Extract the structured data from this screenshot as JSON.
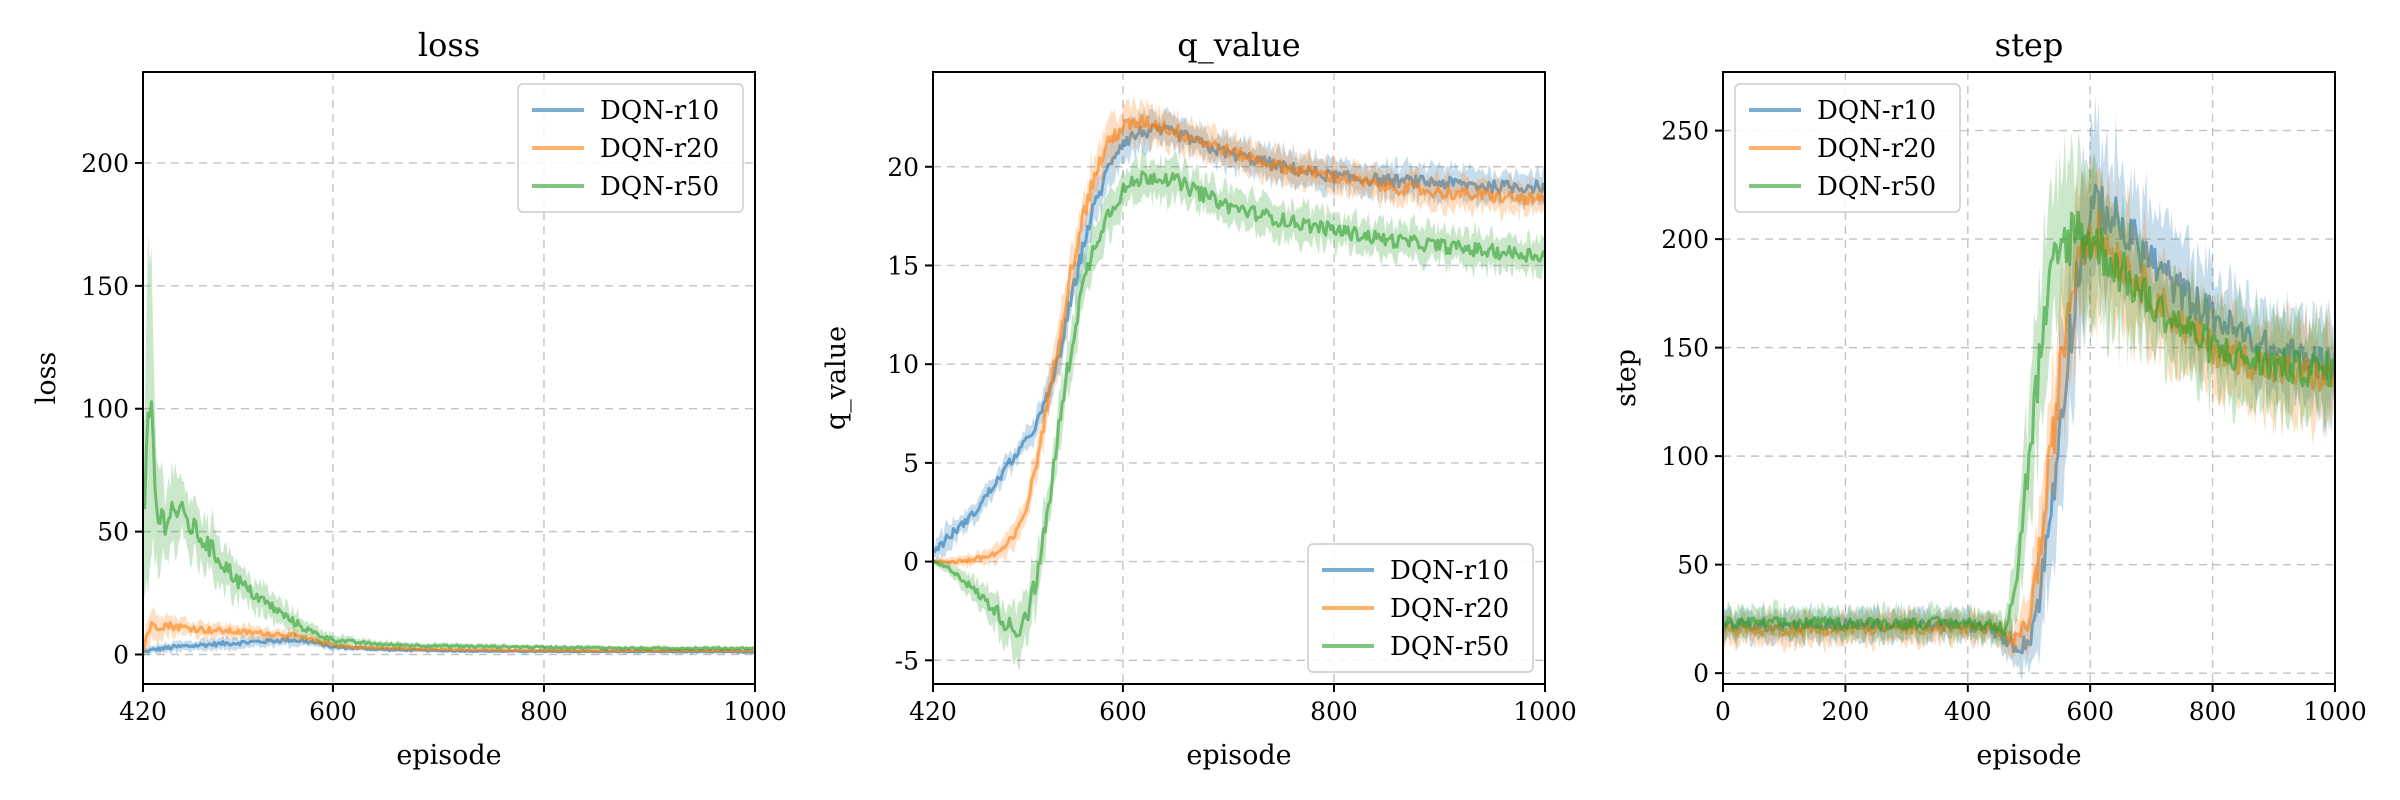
{
  "chart_data": [
    {
      "type": "line",
      "title": "loss",
      "xlabel": "episode",
      "ylabel": "loss",
      "xlim": [
        420,
        1000
      ],
      "ylim": [
        -12,
        237
      ],
      "xticks": [
        420,
        600,
        800,
        1000
      ],
      "yticks": [
        0,
        50,
        100,
        150,
        200
      ],
      "ytick_labels": [
        "0",
        "50",
        "100",
        "150",
        "200"
      ],
      "grid": true,
      "legend_position": "top-right",
      "series": [
        {
          "name": "DQN-r10",
          "color": "#1f77b4",
          "x": [
            420,
            430,
            450,
            480,
            520,
            560,
            580,
            600,
            650,
            700,
            800,
            900,
            1000
          ],
          "values": [
            1,
            2,
            3,
            4,
            5,
            6,
            5,
            3,
            2,
            1.5,
            1.2,
            1.1,
            1
          ],
          "band": [
            1,
            1.5,
            2,
            2,
            2,
            2,
            1.5,
            1,
            0.8,
            0.5,
            0.4,
            0.4,
            0.4
          ]
        },
        {
          "name": "DQN-r20",
          "color": "#ff7f0e",
          "x": [
            420,
            425,
            430,
            440,
            460,
            480,
            500,
            520,
            540,
            560,
            580,
            600,
            620,
            650,
            700,
            800,
            900,
            1000
          ],
          "values": [
            2,
            10,
            12,
            12,
            11,
            10,
            9.5,
            9,
            8.5,
            8,
            6,
            4,
            3,
            2.5,
            2,
            1.6,
            1.5,
            1.5
          ],
          "band": [
            3,
            6,
            5,
            4,
            3,
            3,
            2.5,
            2.5,
            2,
            2,
            1.5,
            1,
            0.8,
            0.6,
            0.5,
            0.4,
            0.4,
            0.4
          ]
        },
        {
          "name": "DQN-r50",
          "color": "#2ca02c",
          "x": [
            420,
            422,
            425,
            428,
            432,
            436,
            440,
            445,
            450,
            460,
            470,
            480,
            490,
            500,
            510,
            520,
            540,
            560,
            580,
            600,
            620,
            650,
            700,
            800,
            900,
            1000
          ],
          "values": [
            60,
            50,
            90,
            100,
            60,
            55,
            55,
            58,
            60,
            55,
            50,
            45,
            40,
            35,
            30,
            26,
            20,
            14,
            9,
            6,
            5,
            4,
            3.5,
            3,
            2.5,
            2.5
          ],
          "band": [
            30,
            25,
            60,
            60,
            20,
            15,
            15,
            14,
            14,
            12,
            10,
            10,
            9,
            8,
            7,
            6,
            5,
            4,
            3,
            2,
            1.5,
            1.2,
            1,
            0.8,
            0.8,
            0.8
          ]
        }
      ]
    },
    {
      "type": "line",
      "title": "q_value",
      "xlabel": "episode",
      "ylabel": "q_value",
      "xlim": [
        420,
        1000
      ],
      "ylim": [
        -6.2,
        24.8
      ],
      "xticks": [
        420,
        600,
        800,
        1000
      ],
      "yticks": [
        -5,
        0,
        5,
        10,
        15,
        20
      ],
      "ytick_labels": [
        "-5",
        "0",
        "5",
        "10",
        "15",
        "20"
      ],
      "grid": true,
      "legend_position": "lower-right",
      "series": [
        {
          "name": "DQN-r10",
          "color": "#1f77b4",
          "x": [
            420,
            430,
            440,
            450,
            460,
            470,
            480,
            490,
            500,
            510,
            520,
            530,
            540,
            550,
            560,
            570,
            580,
            590,
            600,
            620,
            640,
            660,
            680,
            700,
            750,
            800,
            850,
            900,
            950,
            1000
          ],
          "values": [
            0.5,
            1,
            1.5,
            2,
            2.5,
            3.3,
            4,
            4.8,
            5.5,
            6.2,
            7.2,
            8.5,
            10.5,
            13,
            15.5,
            17.5,
            19,
            20.5,
            21.3,
            21.8,
            21.8,
            21.5,
            21,
            20.7,
            20,
            19.5,
            19.3,
            19.2,
            19,
            19
          ],
          "band": [
            0.3,
            0.6,
            0.5,
            0.4,
            0.4,
            0.5,
            0.5,
            0.5,
            0.5,
            0.5,
            0.6,
            0.7,
            0.8,
            0.9,
            0.9,
            0.9,
            0.9,
            0.9,
            0.8,
            0.8,
            0.7,
            0.7,
            0.7,
            0.7,
            0.7,
            0.7,
            0.7,
            0.7,
            0.7,
            0.7
          ]
        },
        {
          "name": "DQN-r20",
          "color": "#ff7f0e",
          "x": [
            420,
            440,
            460,
            480,
            490,
            500,
            510,
            520,
            530,
            540,
            550,
            560,
            570,
            580,
            590,
            600,
            620,
            640,
            660,
            680,
            700,
            750,
            800,
            850,
            900,
            950,
            1000
          ],
          "values": [
            0,
            0,
            0.1,
            0.4,
            0.8,
            1.5,
            3,
            5.5,
            8.5,
            11.5,
            14.5,
            17,
            19,
            20.5,
            21.5,
            22,
            22.3,
            22,
            21.6,
            21.2,
            20.8,
            20,
            19.5,
            19,
            18.7,
            18.5,
            18.3
          ],
          "band": [
            0.1,
            0.2,
            0.3,
            0.4,
            0.5,
            0.6,
            0.7,
            0.8,
            0.9,
            1,
            1,
            1,
            1,
            1,
            1,
            0.9,
            0.8,
            0.8,
            0.8,
            0.7,
            0.7,
            0.7,
            0.7,
            0.7,
            0.7,
            0.7,
            0.7
          ]
        },
        {
          "name": "DQN-r50",
          "color": "#2ca02c",
          "x": [
            420,
            440,
            460,
            480,
            490,
            500,
            510,
            520,
            530,
            540,
            550,
            560,
            570,
            580,
            590,
            600,
            620,
            640,
            660,
            680,
            700,
            750,
            800,
            850,
            900,
            950,
            1000
          ],
          "values": [
            0,
            -0.5,
            -1.5,
            -2.5,
            -3.2,
            -3.5,
            -2.5,
            -0.5,
            3,
            7,
            10.5,
            13.5,
            15.5,
            17,
            18,
            18.8,
            19.5,
            19.5,
            19,
            18.5,
            18,
            17.3,
            16.8,
            16.3,
            16,
            15.7,
            15.5
          ],
          "band": [
            0.1,
            0.3,
            0.5,
            0.8,
            1,
            1.2,
            1.2,
            1.2,
            1.2,
            1.2,
            1.2,
            1.1,
            1,
            1,
            1,
            0.9,
            0.9,
            0.9,
            0.9,
            0.8,
            0.8,
            0.8,
            0.8,
            0.8,
            0.8,
            0.8,
            0.8
          ]
        }
      ]
    },
    {
      "type": "line",
      "title": "step",
      "xlabel": "episode",
      "ylabel": "step",
      "xlim": [
        0,
        1000
      ],
      "ylim": [
        -5,
        277
      ],
      "xticks": [
        0,
        200,
        400,
        600,
        800,
        1000
      ],
      "yticks": [
        0,
        50,
        100,
        150,
        200,
        250
      ],
      "ytick_labels": [
        "0",
        "50",
        "100",
        "150",
        "200",
        "250"
      ],
      "grid": true,
      "legend_position": "top-left",
      "series": [
        {
          "name": "DQN-r10",
          "color": "#1f77b4",
          "x": [
            0,
            100,
            200,
            300,
            400,
            440,
            460,
            480,
            500,
            520,
            540,
            560,
            580,
            600,
            620,
            650,
            700,
            750,
            800,
            850,
            900,
            950,
            1000
          ],
          "values": [
            22,
            22,
            22,
            22,
            22,
            20,
            16,
            12,
            14,
            40,
            85,
            140,
            185,
            210,
            215,
            205,
            190,
            175,
            165,
            155,
            148,
            145,
            142
          ],
          "band": [
            6,
            6,
            6,
            6,
            6,
            6,
            6,
            8,
            10,
            20,
            28,
            30,
            30,
            30,
            28,
            26,
            22,
            20,
            18,
            18,
            18,
            18,
            18
          ]
        },
        {
          "name": "DQN-r20",
          "color": "#ff7f0e",
          "x": [
            0,
            100,
            200,
            300,
            400,
            440,
            460,
            480,
            500,
            520,
            540,
            560,
            580,
            600,
            620,
            650,
            700,
            750,
            800,
            850,
            900,
            950,
            1000
          ],
          "values": [
            20,
            20,
            20,
            21,
            21,
            20,
            17,
            15,
            25,
            60,
            110,
            160,
            195,
            205,
            200,
            190,
            175,
            160,
            150,
            145,
            140,
            138,
            136
          ],
          "band": [
            6,
            6,
            6,
            6,
            6,
            6,
            6,
            8,
            12,
            22,
            28,
            30,
            30,
            28,
            26,
            24,
            20,
            18,
            18,
            18,
            18,
            18,
            18
          ]
        },
        {
          "name": "DQN-r50",
          "color": "#2ca02c",
          "x": [
            0,
            100,
            200,
            300,
            400,
            440,
            460,
            480,
            500,
            520,
            540,
            560,
            580,
            600,
            620,
            650,
            700,
            750,
            800,
            850,
            900,
            950,
            1000
          ],
          "values": [
            23,
            23,
            23,
            23,
            23,
            22,
            20,
            45,
            100,
            150,
            185,
            200,
            205,
            200,
            195,
            185,
            170,
            160,
            150,
            145,
            142,
            140,
            140
          ],
          "band": [
            6,
            6,
            6,
            6,
            6,
            6,
            6,
            15,
            25,
            30,
            32,
            32,
            30,
            28,
            26,
            24,
            20,
            18,
            18,
            18,
            18,
            18,
            18
          ]
        }
      ]
    }
  ]
}
